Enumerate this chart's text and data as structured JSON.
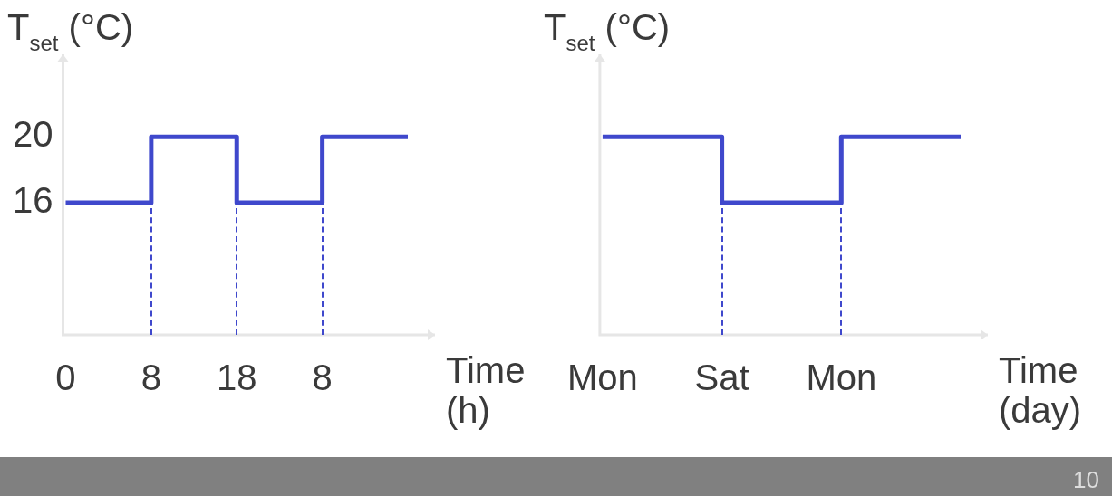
{
  "chart_data": [
    {
      "type": "step",
      "ylabel": "T$_{set}$ (°C)",
      "xlabel": "Time (h)",
      "categories": [
        "0",
        "8",
        "18",
        "8",
        null
      ],
      "ylim": [
        8,
        25
      ],
      "yticks": [
        16,
        20
      ],
      "grid": false,
      "legend": false,
      "line_style": "solid",
      "marker": "none",
      "series": [
        {
          "color": "#3f48cc",
          "values": [
            16,
            20,
            16,
            20,
            20
          ]
        }
      ]
    },
    {
      "type": "step",
      "ylabel": "T$_{set}$ (°C)",
      "xlabel": "Time (day)",
      "categories": [
        "Mon",
        "Sat",
        "Mon",
        null
      ],
      "ylim": [
        8,
        25
      ],
      "tick_labels": "x",
      "grid": false,
      "legend": false,
      "line_style": "solid",
      "marker": "none",
      "series": [
        {
          "color": "#3f48cc",
          "values": [
            20,
            16,
            20,
            20
          ]
        }
      ],
      "annotations": [
        "10"
      ]
    }
  ]
}
